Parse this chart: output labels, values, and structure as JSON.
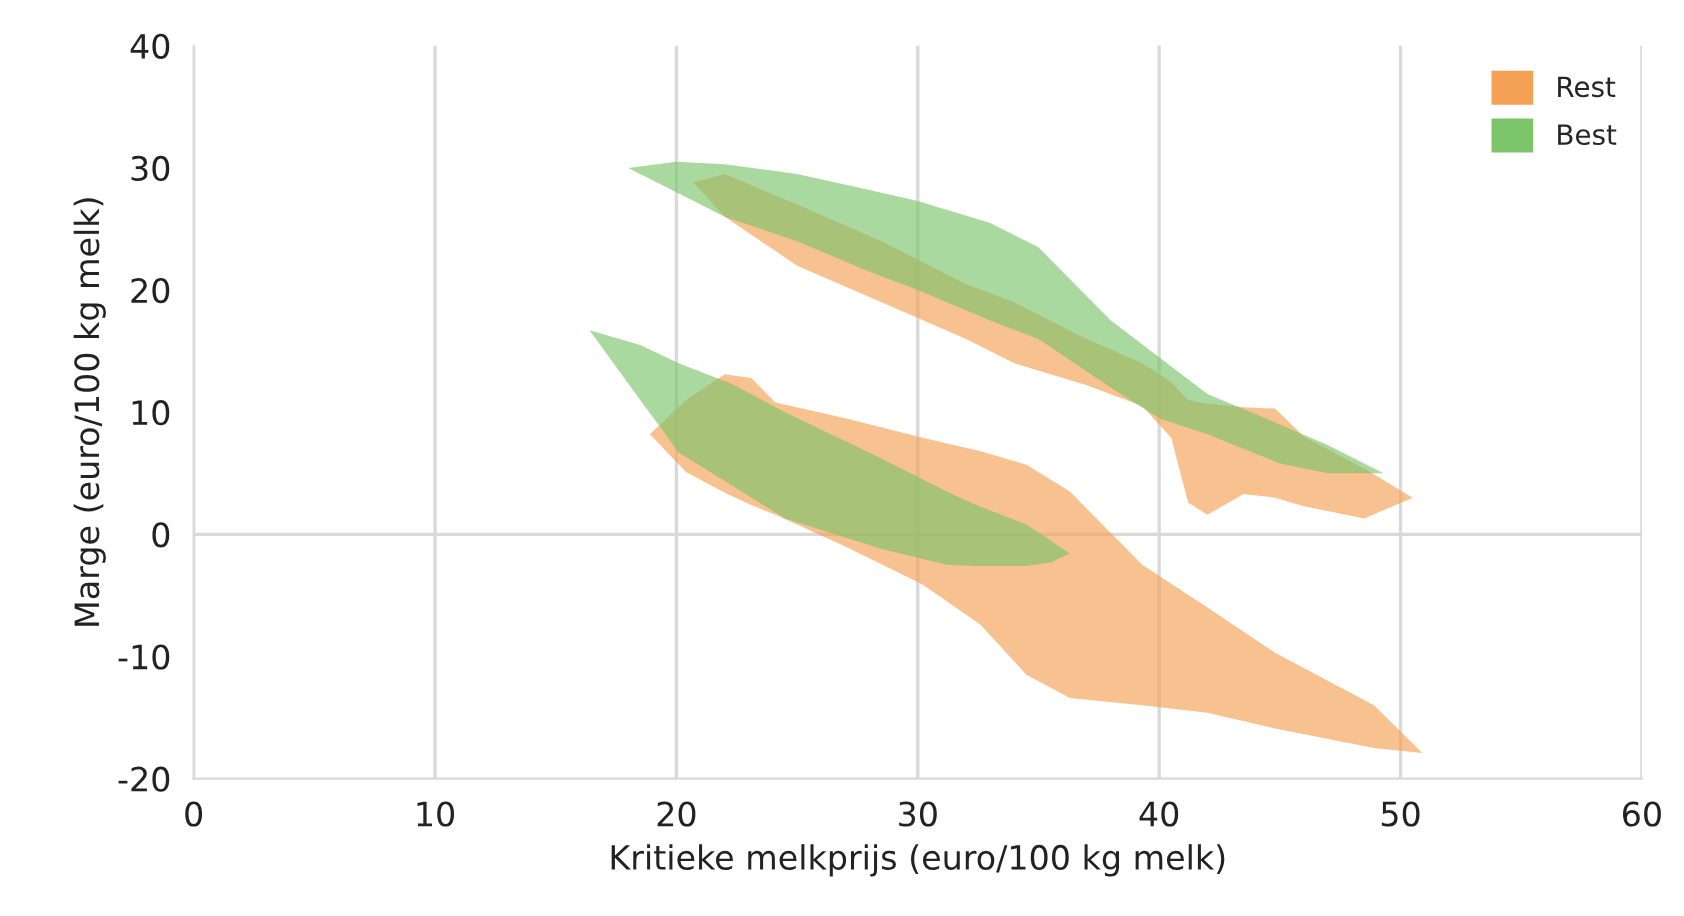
{
  "chart_data": {
    "type": "area",
    "xlabel": "Kritieke melkprijs (euro/100 kg melk)",
    "ylabel": "Marge (euro/100 kg melk)",
    "xlim": [
      0,
      60
    ],
    "xticks": [
      0,
      10,
      20,
      30,
      40,
      50,
      60
    ],
    "ylim": [
      -20,
      40
    ],
    "yticks": [
      -20,
      -10,
      0,
      10,
      20,
      30,
      40
    ],
    "grid": "x",
    "legend": "top right",
    "ref_lines": [
      {
        "axis": "y",
        "value": 0,
        "color": "#d9d9d9"
      }
    ],
    "series": [
      {
        "name": "Rest",
        "color": "#f4a055",
        "x": [
          20.7,
          22,
          25,
          28.5,
          32,
          34,
          37,
          39.3,
          40.5,
          41.2,
          42,
          43.5,
          44.8,
          46,
          48.5,
          50.5,
          48.5,
          46,
          44.8,
          43.5,
          42,
          41.2,
          40.5,
          39.3,
          37,
          34,
          32,
          28.5,
          25,
          22
        ],
        "values": [
          28.8,
          29.5,
          27,
          24,
          20.5,
          19,
          16,
          14,
          12.5,
          11,
          10.7,
          10.4,
          10.3,
          8,
          5.4,
          3,
          1.3,
          2.3,
          3,
          3.3,
          1.6,
          2.6,
          7.9,
          10.5,
          12.2,
          14,
          16,
          19,
          22,
          26
        ]
      },
      {
        "color": "#f4a055",
        "x": [
          18.9,
          20.4,
          22,
          23.1,
          24.1,
          27,
          30.2,
          32.6,
          34.5,
          36.3,
          39.3,
          42,
          44.8,
          48.9,
          50.9,
          48.9,
          44.8,
          42,
          39.3,
          36.3,
          34.5,
          32.6,
          30.2,
          27,
          24.1,
          23.1,
          22,
          20.4
        ],
        "values": [
          8.2,
          11,
          13.1,
          12.8,
          10.8,
          9.5,
          7.9,
          6.8,
          5.7,
          3.5,
          -2.5,
          -6,
          -9.7,
          -14,
          -17.9,
          -17.5,
          -15.9,
          -14.6,
          -14,
          -13.4,
          -11.5,
          -7.4,
          -4.1,
          -1,
          1.6,
          2.4,
          3.4,
          5.1
        ]
      },
      {
        "name": "Best",
        "color": "#7dc56b",
        "x": [
          18,
          20,
          22,
          25,
          28,
          30,
          33,
          35,
          38,
          40,
          42,
          45,
          47,
          49.3,
          47,
          45,
          42,
          40,
          38,
          35,
          33,
          30,
          28,
          25,
          22,
          20
        ],
        "values": [
          30,
          30.5,
          30.3,
          29.5,
          28.2,
          27.3,
          25.5,
          23.5,
          17.5,
          14.5,
          11.5,
          9,
          7.3,
          5,
          5,
          5.8,
          8.2,
          9.5,
          12,
          16,
          17.5,
          20,
          21.5,
          24,
          26,
          28
        ]
      },
      {
        "color": "#7dc56b",
        "x": [
          16.4,
          18.5,
          20.1,
          22.3,
          24.5,
          28.5,
          31.2,
          32.3,
          34.5,
          35.5,
          36.3,
          35.5,
          34.5,
          32.3,
          31.2,
          28.5,
          24.5,
          22.3,
          20.1,
          18.5
        ],
        "values": [
          16.7,
          15.5,
          14,
          12.3,
          10,
          6.2,
          3.5,
          2.5,
          0.8,
          -0.5,
          -1.6,
          -2.3,
          -2.6,
          -2.6,
          -2.5,
          -1.2,
          1.3,
          4,
          6.7,
          11
        ]
      }
    ]
  }
}
